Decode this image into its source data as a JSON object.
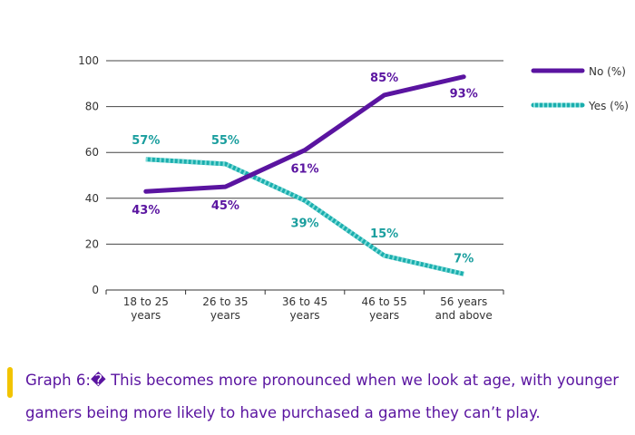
{
  "chart_data": {
    "type": "line",
    "categories": [
      [
        "18 to 25",
        "years"
      ],
      [
        "26 to 35",
        "years"
      ],
      [
        "36 to 45",
        "years"
      ],
      [
        "46 to 55",
        "years"
      ],
      [
        "56 years",
        "and above"
      ]
    ],
    "series": [
      {
        "name": "No (%)",
        "values": [
          43,
          45,
          61,
          85,
          93
        ],
        "labels": [
          "43%",
          "45%",
          "61%",
          "85%",
          "93%"
        ],
        "color": "#5a14a0",
        "style": "solid"
      },
      {
        "name": "Yes (%)",
        "values": [
          57,
          55,
          39,
          15,
          7
        ],
        "labels": [
          "57%",
          "55%",
          "39%",
          "15%",
          "7%"
        ],
        "color": "#1aaeae",
        "style": "dashed"
      }
    ],
    "ylim": [
      0,
      100
    ],
    "yticks": [
      0,
      20,
      40,
      60,
      80,
      100
    ],
    "grid": true,
    "legend": "top-right"
  },
  "caption": {
    "text": "Graph 6:� This becomes more pronounced when we look at age, with younger gamers being more likely to have purchased a game they can’t play."
  }
}
